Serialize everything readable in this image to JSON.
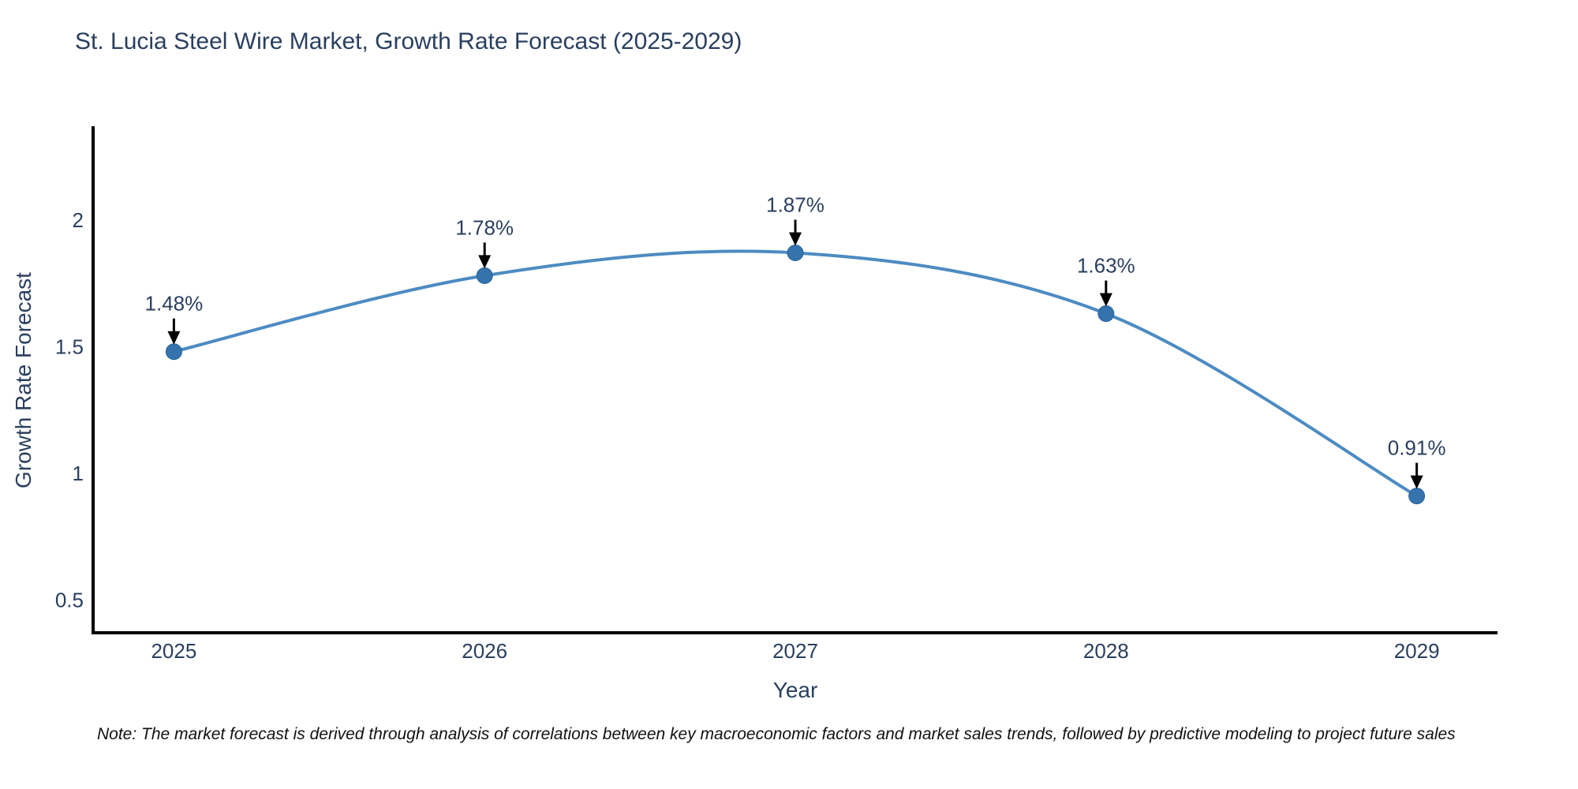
{
  "chart_data": {
    "type": "line",
    "title": "St. Lucia Steel Wire Market, Growth Rate Forecast (2025-2029)",
    "xlabel": "Year",
    "ylabel": "Growth Rate Forecast",
    "x": [
      2025,
      2026,
      2027,
      2028,
      2029
    ],
    "series": [
      {
        "name": "Growth Rate Forecast",
        "values": [
          1.48,
          1.78,
          1.87,
          1.63,
          0.91
        ],
        "point_labels": [
          "1.48%",
          "1.78%",
          "1.87%",
          "1.63%",
          "0.91%"
        ]
      }
    ],
    "x_tick_labels": [
      "2025",
      "2026",
      "2027",
      "2028",
      "2029"
    ],
    "y_ticks": [
      0.5,
      1,
      1.5,
      2
    ],
    "y_tick_labels": [
      "0.5",
      "1",
      "1.5",
      "2"
    ],
    "xlim": [
      2024.74,
      2029.26
    ],
    "ylim": [
      0.37,
      2.37
    ],
    "grid": false,
    "legend_position": "none",
    "line_shape": "spline",
    "annotation_arrows": true,
    "colors": {
      "line": "#4d8bc2",
      "marker": "#3473ac",
      "marker_edge": "#2c659b",
      "text": "#2a3f5f",
      "axis": "#000000",
      "arrow": "#000000",
      "background": "#ffffff"
    }
  },
  "footnote": "Note: The market forecast is derived through analysis of correlations between key macroeconomic factors and market sales trends, followed by predictive modeling to project future sales"
}
